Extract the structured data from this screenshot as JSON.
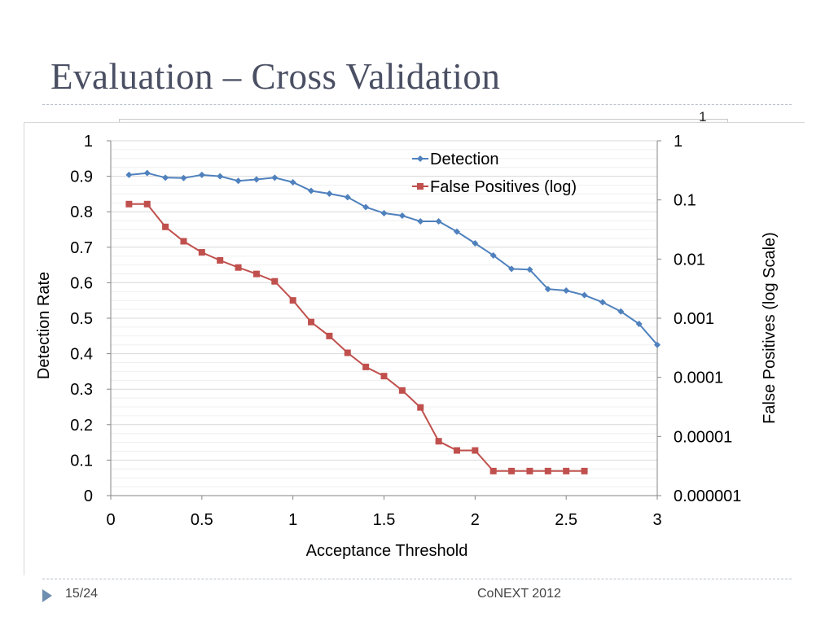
{
  "slide": {
    "title": "Evaluation – Cross Validation",
    "page_number": "15/24",
    "conference": "CoNEXT 2012",
    "partial_label": "1"
  },
  "chart_data": {
    "type": "line",
    "xlabel": "Acceptance Threshold",
    "ylabel_left": "Detection Rate",
    "ylabel_right": "False Positives (log Scale)",
    "xlim": [
      0,
      3
    ],
    "xticks": [
      "0",
      "0.5",
      "1",
      "1.5",
      "2",
      "2.5",
      "3"
    ],
    "ylim_left": [
      0,
      1
    ],
    "yticks_left": [
      "0",
      "0.1",
      "0.2",
      "0.3",
      "0.4",
      "0.5",
      "0.6",
      "0.7",
      "0.8",
      "0.9",
      "1"
    ],
    "ylim_right": [
      1e-06,
      1
    ],
    "right_scale": "log",
    "yticks_right": [
      "0.000001",
      "0.00001",
      "0.0001",
      "0.001",
      "0.01",
      "0.1",
      "1"
    ],
    "grid": "horizontal",
    "legend_position": "top-right",
    "series": [
      {
        "name": "Detection",
        "axis": "left",
        "color": "#4f81bd",
        "marker": "diamond",
        "x": [
          0.1,
          0.2,
          0.3,
          0.4,
          0.5,
          0.6,
          0.7,
          0.8,
          0.9,
          1.0,
          1.1,
          1.2,
          1.3,
          1.4,
          1.5,
          1.6,
          1.7,
          1.8,
          1.9,
          2.0,
          2.1,
          2.2,
          2.3,
          2.4,
          2.5,
          2.6,
          2.7,
          2.8,
          2.9,
          3.0
        ],
        "y": [
          0.904,
          0.909,
          0.896,
          0.895,
          0.904,
          0.9,
          0.887,
          0.891,
          0.896,
          0.883,
          0.859,
          0.851,
          0.841,
          0.813,
          0.796,
          0.789,
          0.773,
          0.773,
          0.744,
          0.711,
          0.677,
          0.639,
          0.637,
          0.582,
          0.578,
          0.565,
          0.545,
          0.519,
          0.484,
          0.425
        ]
      },
      {
        "name": "False Positives (log)",
        "axis": "right",
        "color": "#c0504d",
        "marker": "square",
        "x": [
          0.1,
          0.2,
          0.3,
          0.4,
          0.5,
          0.6,
          0.7,
          0.8,
          0.9,
          1.0,
          1.1,
          1.2,
          1.3,
          1.4,
          1.5,
          1.6,
          1.7,
          1.8,
          1.9,
          2.0,
          2.1,
          2.2,
          2.3,
          2.4,
          2.5,
          2.6
        ],
        "y": [
          0.085,
          0.085,
          0.035,
          0.02,
          0.013,
          0.0095,
          0.0072,
          0.0056,
          0.0042,
          0.002,
          0.00086,
          0.0005,
          0.00026,
          0.00015,
          0.000105,
          6e-05,
          3.1e-05,
          8.3e-06,
          5.8e-06,
          5.8e-06,
          2.6e-06,
          2.6e-06,
          2.6e-06,
          2.6e-06,
          2.6e-06,
          2.6e-06
        ]
      }
    ]
  }
}
